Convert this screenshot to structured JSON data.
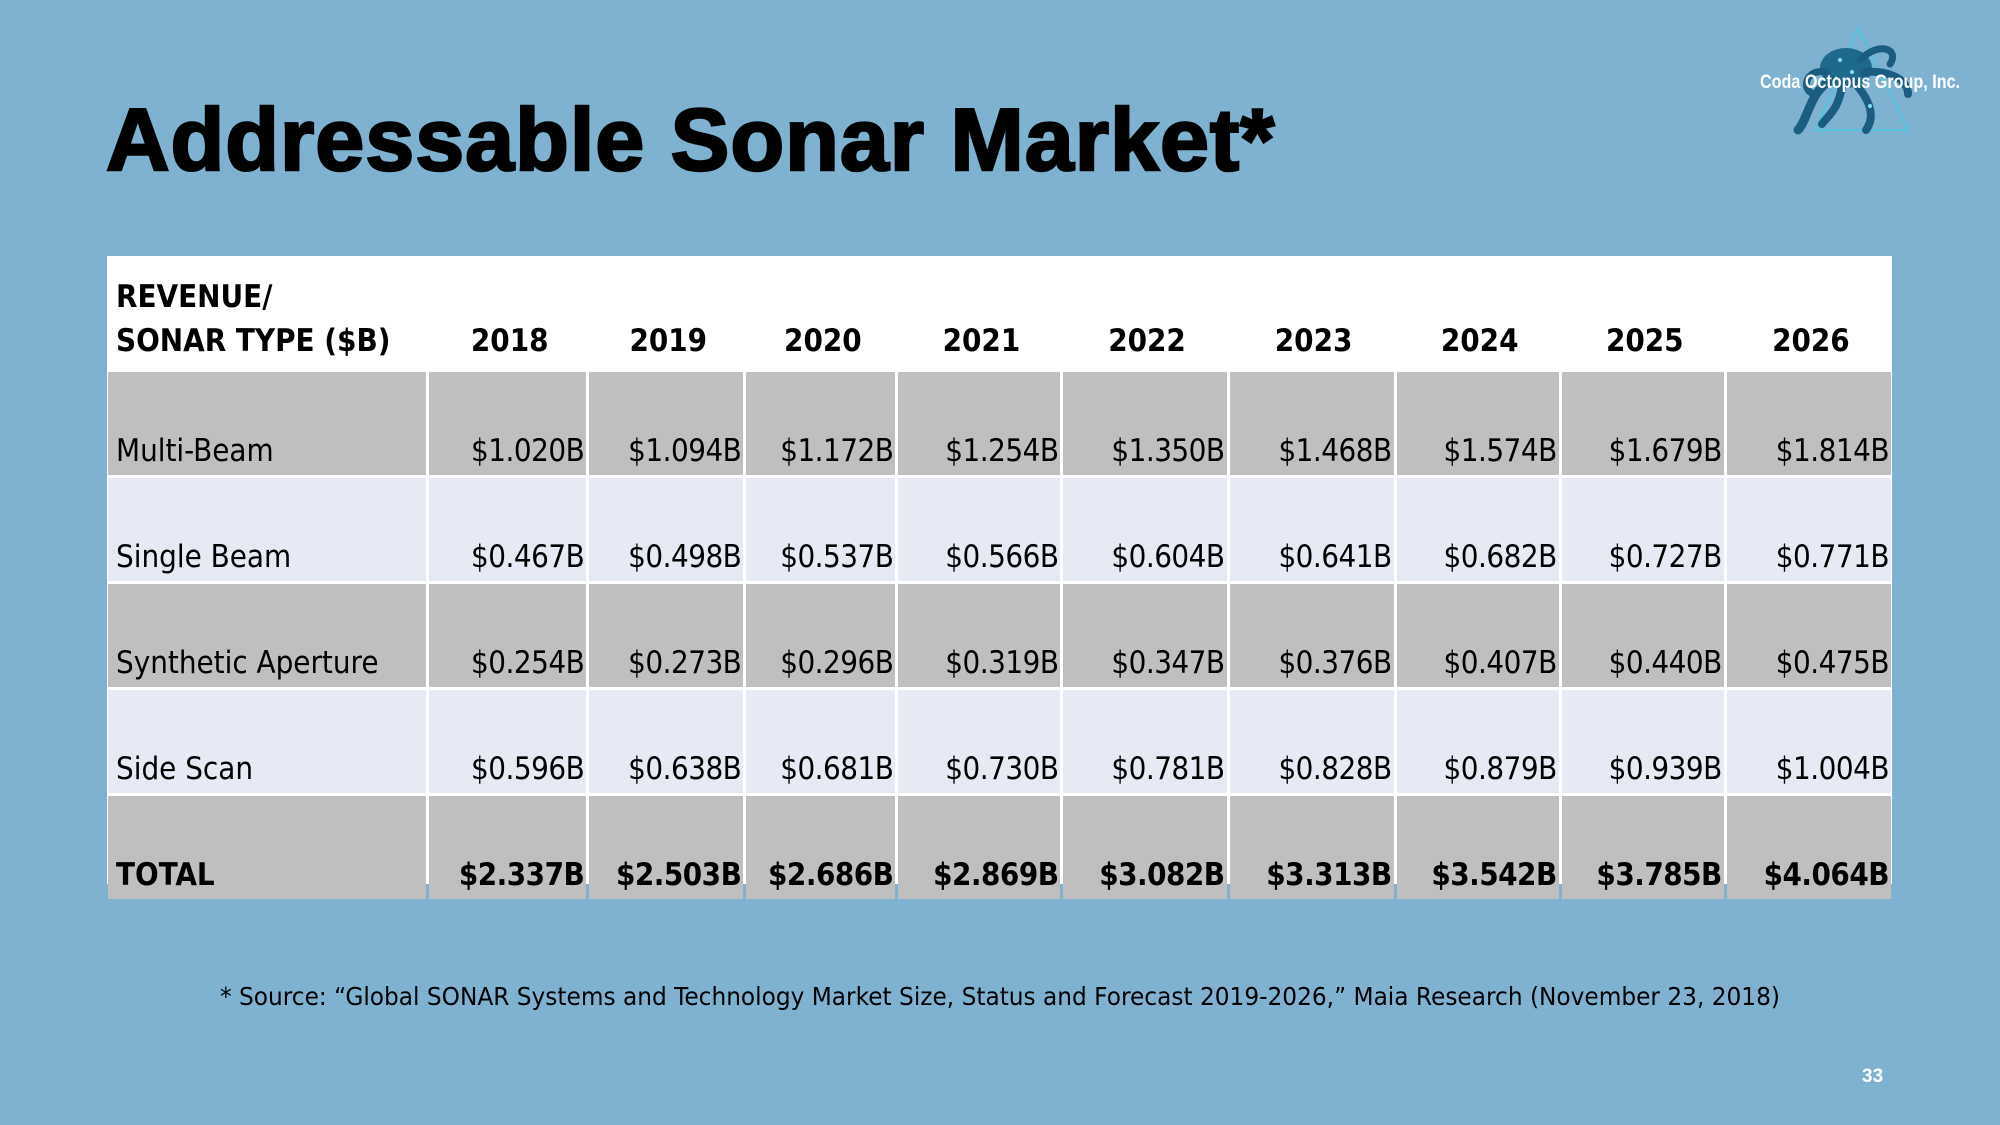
{
  "slide": {
    "title": "Addressable Sonar Market*",
    "logo_text": "Coda Octopus Group, Inc.",
    "logo_icon": "octopus-triangle-logo",
    "page_number": "33",
    "source_note": "* Source: “Global SONAR Systems and Technology Market Size, Status and Forecast 2019-2026,” Maia Research (November 23, 2018)",
    "colors": {
      "background": "#7fb2d1",
      "row_gray": "#bfbfbf",
      "row_light": "#e6eaf5",
      "header_bg": "#ffffff"
    }
  },
  "table": {
    "header_line1": "REVENUE/",
    "header_line2": "SONAR TYPE ($B)",
    "years": [
      "2018",
      "2019",
      "2020",
      "2021",
      "2022",
      "2023",
      "2024",
      "2025",
      "2026"
    ],
    "rows": [
      {
        "label": "Multi-Beam",
        "values": [
          "$1.020B",
          "$1.094B",
          "$1.172B",
          "$1.254B",
          "$1.350B",
          "$1.468B",
          "$1.574B",
          "$1.679B",
          "$1.814B"
        ]
      },
      {
        "label": "Single Beam",
        "values": [
          "$0.467B",
          "$0.498B",
          "$0.537B",
          "$0.566B",
          "$0.604B",
          "$0.641B",
          "$0.682B",
          "$0.727B",
          "$0.771B"
        ]
      },
      {
        "label": "Synthetic Aperture",
        "values": [
          "$0.254B",
          "$0.273B",
          "$0.296B",
          "$0.319B",
          "$0.347B",
          "$0.376B",
          "$0.407B",
          "$0.440B",
          "$0.475B"
        ]
      },
      {
        "label": "Side Scan",
        "values": [
          "$0.596B",
          "$0.638B",
          "$0.681B",
          "$0.730B",
          "$0.781B",
          "$0.828B",
          "$0.879B",
          "$0.939B",
          "$1.004B"
        ]
      },
      {
        "label": "TOTAL",
        "values": [
          "$2.337B",
          "$2.503B",
          "$2.686B",
          "$2.869B",
          "$3.082B",
          "$3.313B",
          "$3.542B",
          "$3.785B",
          "$4.064B"
        ]
      }
    ]
  }
}
